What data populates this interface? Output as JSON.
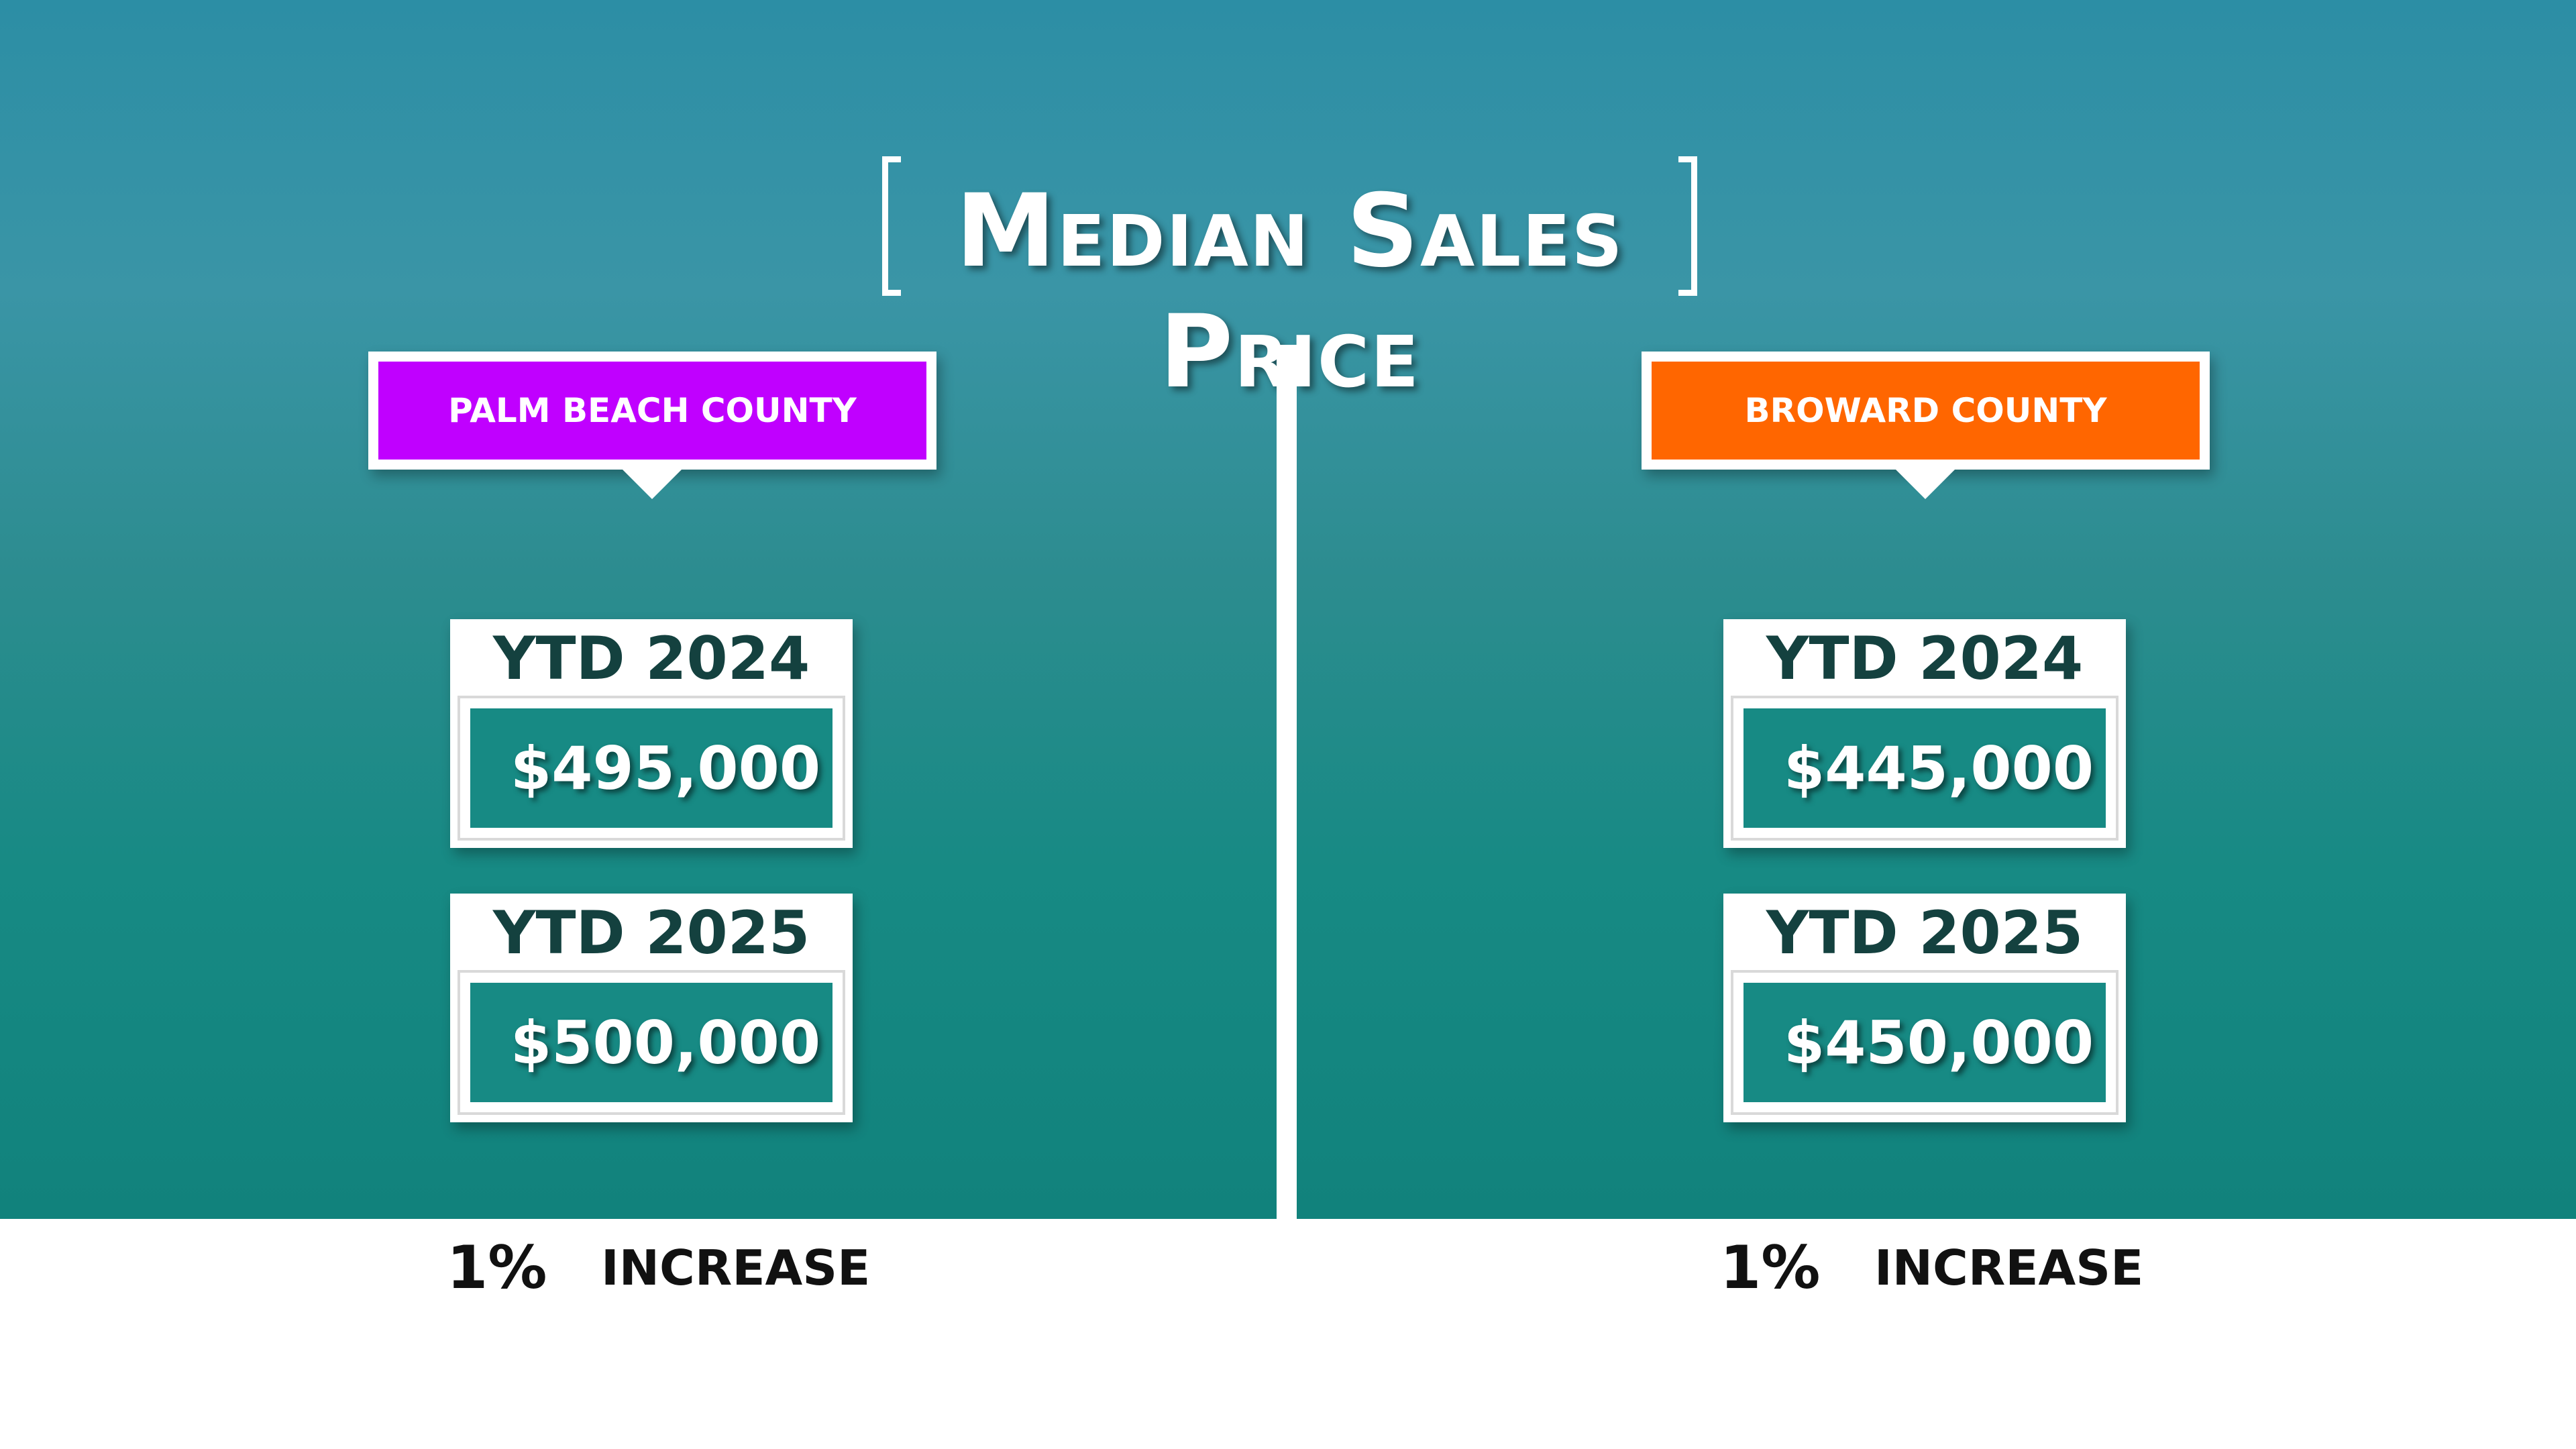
{
  "title": "Median Sales Price",
  "panels": [
    {
      "county": "PALM BEACH COUNTY",
      "color": "#c000ff",
      "rows": [
        {
          "label": "YTD 2024",
          "value": "$495,000"
        },
        {
          "label": "YTD 2025",
          "value": "$500,000"
        }
      ],
      "change": "1%",
      "change_label": "INCREASE"
    },
    {
      "county": "BROWARD COUNTY",
      "color": "#ff6600",
      "rows": [
        {
          "label": "YTD 2024",
          "value": "$445,000"
        },
        {
          "label": "YTD 2025",
          "value": "$450,000"
        }
      ],
      "change": "1%",
      "change_label": "INCREASE"
    }
  ]
}
